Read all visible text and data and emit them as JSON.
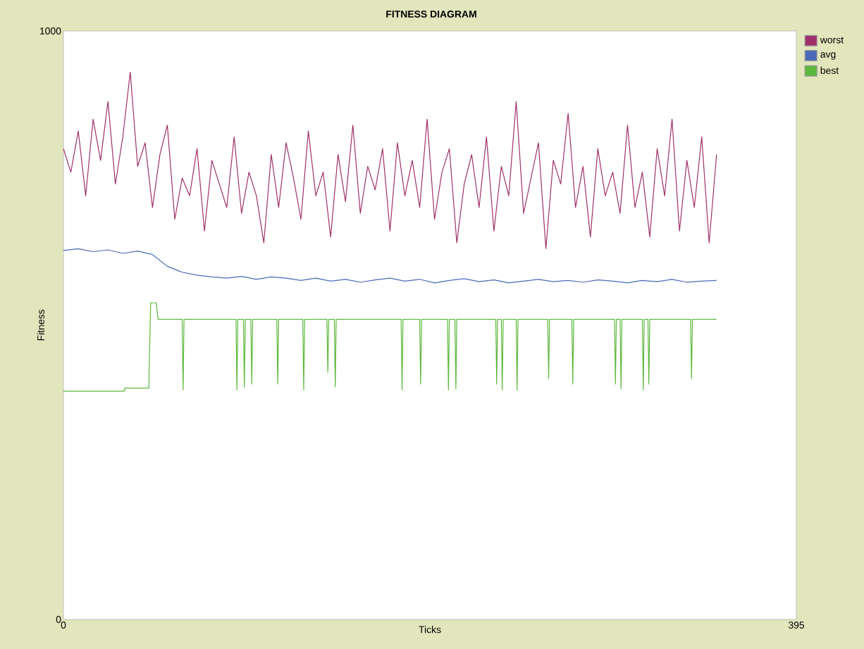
{
  "chart_data": {
    "type": "line",
    "title": "FITNESS DIAGRAM",
    "xlabel": "Ticks",
    "ylabel": "Fitness",
    "xlim": [
      0,
      395
    ],
    "ylim": [
      0,
      1000
    ],
    "xticks": [
      0,
      395
    ],
    "yticks": [
      0,
      1000
    ],
    "grid": false,
    "legend": "top right",
    "marker": "none",
    "line_style": "solid",
    "series": [
      {
        "name": "worst",
        "color": "#a0306a",
        "x": [
          0,
          4,
          8,
          12,
          16,
          20,
          24,
          28,
          32,
          36,
          40,
          44,
          48,
          52,
          56,
          60,
          64,
          68,
          72,
          76,
          80,
          84,
          88,
          92,
          96,
          100,
          104,
          108,
          112,
          116,
          120,
          124,
          128,
          132,
          136,
          140,
          144,
          148,
          152,
          156,
          160,
          164,
          168,
          172,
          176,
          180,
          184,
          188,
          192,
          196,
          200,
          204,
          208,
          212,
          216,
          220,
          224,
          228,
          232,
          236,
          240,
          244,
          248,
          252,
          256,
          260,
          264,
          268,
          272,
          276,
          280,
          284,
          288,
          292,
          296,
          300,
          304,
          308,
          312,
          316,
          320,
          324,
          328,
          332,
          336,
          340,
          344,
          348,
          352
        ],
        "values": [
          800,
          760,
          830,
          720,
          850,
          780,
          880,
          740,
          820,
          930,
          770,
          810,
          700,
          790,
          840,
          680,
          750,
          720,
          800,
          660,
          780,
          740,
          700,
          820,
          690,
          760,
          720,
          640,
          790,
          700,
          810,
          750,
          680,
          830,
          720,
          760,
          650,
          790,
          710,
          840,
          690,
          770,
          730,
          800,
          660,
          810,
          720,
          780,
          700,
          850,
          680,
          760,
          800,
          640,
          740,
          790,
          700,
          820,
          660,
          770,
          720,
          880,
          690,
          750,
          810,
          630,
          780,
          740,
          860,
          700,
          770,
          650,
          800,
          720,
          760,
          690,
          840,
          700,
          760,
          650,
          800,
          720,
          850,
          660,
          780,
          700,
          820,
          640,
          790
        ]
      },
      {
        "name": "avg",
        "color": "#4a6ab8",
        "x": [
          0,
          8,
          16,
          24,
          32,
          40,
          48,
          56,
          64,
          72,
          80,
          88,
          96,
          104,
          112,
          120,
          128,
          136,
          144,
          152,
          160,
          168,
          176,
          184,
          192,
          200,
          208,
          216,
          224,
          232,
          240,
          248,
          256,
          264,
          272,
          280,
          288,
          296,
          304,
          312,
          320,
          328,
          336,
          344,
          352
        ],
        "values": [
          627,
          630,
          625,
          628,
          622,
          626,
          620,
          600,
          590,
          585,
          582,
          580,
          583,
          578,
          582,
          580,
          576,
          580,
          575,
          578,
          573,
          577,
          580,
          575,
          578,
          572,
          576,
          579,
          574,
          577,
          572,
          575,
          578,
          574,
          576,
          573,
          577,
          575,
          572,
          576,
          574,
          578,
          573,
          575,
          576
        ]
      },
      {
        "name": "best",
        "color": "#5cb83c",
        "x": [
          0,
          33,
          33,
          46,
          47,
          50,
          51,
          64,
          64.5,
          65,
          93,
          93.5,
          94,
          97,
          97.5,
          98,
          101,
          101.5,
          102,
          115,
          115.5,
          116,
          129,
          129.5,
          130,
          142,
          142.5,
          143,
          146,
          146.5,
          147,
          182,
          182.5,
          183,
          192,
          192.5,
          193,
          207,
          207.5,
          208,
          211,
          211.5,
          212,
          233,
          233.5,
          234,
          236,
          236.5,
          237,
          244,
          244.5,
          245,
          261,
          261.5,
          262,
          274,
          274.5,
          275,
          297,
          297.5,
          298,
          300,
          300.5,
          301,
          312,
          312.5,
          313,
          315,
          315.5,
          316,
          338,
          338.5,
          339,
          352
        ],
        "values": [
          388,
          388,
          393,
          393,
          538,
          538,
          510,
          510,
          390,
          510,
          510,
          390,
          510,
          510,
          395,
          510,
          510,
          400,
          510,
          510,
          400,
          510,
          510,
          390,
          510,
          510,
          420,
          510,
          510,
          395,
          510,
          510,
          390,
          510,
          510,
          400,
          510,
          510,
          390,
          510,
          510,
          392,
          510,
          510,
          400,
          510,
          510,
          390,
          510,
          510,
          390,
          510,
          510,
          410,
          510,
          510,
          400,
          510,
          510,
          400,
          510,
          510,
          392,
          510,
          510,
          390,
          510,
          510,
          400,
          510,
          510,
          410,
          510,
          510
        ]
      }
    ]
  }
}
